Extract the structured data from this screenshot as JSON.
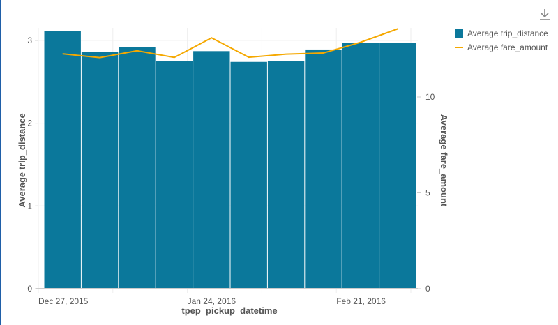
{
  "chart_data": {
    "type": "bar+line",
    "xlabel": "tpep_pickup_datetime",
    "x_tick_labels": [
      "Dec 27, 2015",
      "Jan 24, 2016",
      "Feb 21, 2016"
    ],
    "categories": [
      "2015-12-28",
      "2016-01-04",
      "2016-01-11",
      "2016-01-18",
      "2016-01-25",
      "2016-02-01",
      "2016-02-08",
      "2016-02-15",
      "2016-02-22",
      "2016-02-29"
    ],
    "series": [
      {
        "name": "Average trip_distance",
        "type": "bar",
        "axis": "left",
        "color": "#0b789b",
        "values": [
          3.11,
          2.86,
          2.92,
          2.75,
          2.87,
          2.74,
          2.75,
          2.89,
          2.97,
          2.97
        ]
      },
      {
        "name": "Average fare_amount",
        "type": "line",
        "axis": "right",
        "color": "#f5a800",
        "values": [
          12.25,
          12.05,
          12.41,
          12.06,
          13.08,
          12.07,
          12.23,
          12.29,
          12.85,
          13.55
        ]
      }
    ],
    "ylabel_left": "Average trip_distance",
    "ylabel_right": "Average fare_amount",
    "ylim_left": [
      0,
      3.15
    ],
    "ylim_right": [
      0,
      13.6
    ],
    "yticks_left": [
      "0",
      "1",
      "2",
      "3"
    ],
    "yticks_right": [
      "0",
      "5",
      "10"
    ],
    "grid": true,
    "legend": "top-right"
  },
  "toolbar": {
    "download_icon": "download-icon"
  }
}
